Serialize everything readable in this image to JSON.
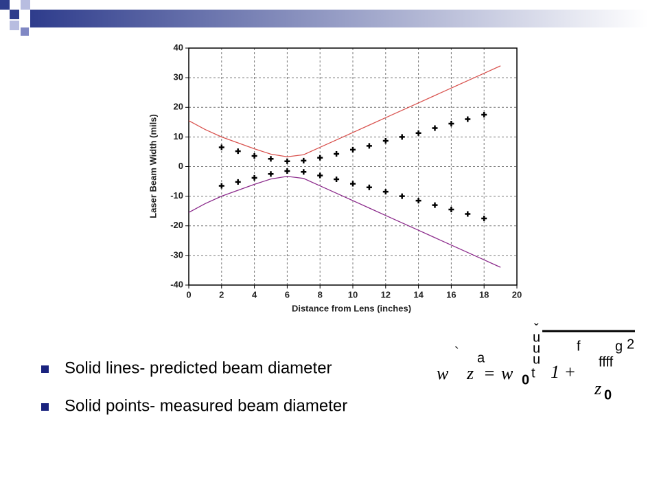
{
  "chart_data": {
    "type": "line",
    "x_label": "Distance from Lens (inches)",
    "y_label": "Laser Beam Width (mils)",
    "xlim": [
      0,
      20
    ],
    "xticks": [
      0,
      2,
      4,
      6,
      8,
      10,
      12,
      14,
      16,
      18,
      20
    ],
    "ylim": [
      -40,
      40
    ],
    "yticks": [
      -40,
      -30,
      -20,
      -10,
      0,
      10,
      20,
      30,
      40
    ],
    "grid": true,
    "series": [
      {
        "type": "line",
        "color": "#d9534f",
        "x": [
          0,
          1,
          2,
          3,
          4,
          5,
          6,
          7,
          8,
          9,
          10,
          11,
          12,
          13,
          14,
          15,
          16,
          17,
          18,
          19
        ],
        "values": [
          15.5,
          12.5,
          10,
          8,
          6,
          4.2,
          3.3,
          4,
          6.5,
          9,
          11.5,
          14,
          16.5,
          19,
          21.5,
          24,
          26.5,
          29,
          31.5,
          34
        ]
      },
      {
        "type": "line",
        "color": "#8b2a8b",
        "x": [
          0,
          1,
          2,
          3,
          4,
          5,
          6,
          7,
          8,
          9,
          10,
          11,
          12,
          13,
          14,
          15,
          16,
          17,
          18,
          19
        ],
        "values": [
          -15.5,
          -12.5,
          -10,
          -8,
          -6,
          -4.2,
          -3.3,
          -4,
          -6.5,
          -9,
          -11.5,
          -14,
          -16.5,
          -19,
          -21.5,
          -24,
          -26.5,
          -29,
          -31.5,
          -34
        ]
      },
      {
        "type": "scatter",
        "color": "#000000",
        "x": [
          2,
          3,
          4,
          5,
          6,
          7,
          8,
          9,
          10,
          11,
          12,
          13,
          14,
          15,
          16,
          17,
          18
        ],
        "values": [
          6.5,
          5.2,
          3.6,
          2.6,
          1.8,
          2,
          3,
          4.3,
          5.7,
          7,
          8.7,
          10,
          11.3,
          13,
          14.5,
          16,
          17.5
        ]
      },
      {
        "type": "scatter",
        "color": "#000000",
        "x": [
          2,
          3,
          4,
          5,
          6,
          7,
          8,
          9,
          10,
          11,
          12,
          13,
          14,
          15,
          16,
          17,
          18
        ],
        "values": [
          -6.5,
          -5.2,
          -3.8,
          -2.5,
          -1.5,
          -1.8,
          -3,
          -4.3,
          -5.8,
          -7,
          -8.5,
          -10,
          -11.5,
          -13,
          -14.5,
          -16,
          -17.5
        ]
      }
    ]
  },
  "bullets": [
    "Solid lines- predicted beam diameter",
    "Solid points- measured beam diameter"
  ],
  "formula": [
    "ˇ",
    "u",
    "u",
    "u",
    "`",
    "a",
    "f",
    "g",
    "2",
    "ffff",
    "w",
    "z",
    "=",
    "w",
    "0",
    "t",
    "1 +",
    "z",
    "0"
  ]
}
